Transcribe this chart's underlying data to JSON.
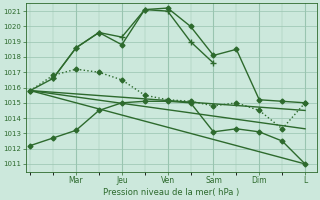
{
  "bg_color": "#cce8dc",
  "grid_color": "#99c4b0",
  "line_color": "#2d6a2d",
  "title": "Pression niveau de la mer( hPa )",
  "ylim": [
    1010.5,
    1021.5
  ],
  "yticks": [
    1011,
    1012,
    1013,
    1014,
    1015,
    1016,
    1017,
    1018,
    1019,
    1020,
    1021
  ],
  "xtick_positions": [
    2,
    4,
    6,
    8,
    10,
    12
  ],
  "xtick_labels": [
    "Mar",
    "Jeu",
    "Ven",
    "Sam",
    "Dim",
    "L"
  ],
  "vline_positions": [
    2,
    4,
    6,
    8,
    10,
    12
  ],
  "xlim": [
    -0.2,
    12.5
  ],
  "series": [
    {
      "x": [
        0,
        1,
        2,
        3,
        4,
        5,
        6,
        7,
        8,
        9,
        10,
        11,
        12
      ],
      "y": [
        1015.8,
        1016.6,
        1018.6,
        1019.6,
        1018.8,
        1021.1,
        1021.2,
        1020.0,
        1018.1,
        1018.5,
        1015.2,
        1015.1,
        1015.0
      ],
      "marker": "D",
      "markersize": 2.5,
      "linewidth": 1.0,
      "linestyle": "-"
    },
    {
      "x": [
        1,
        2,
        3,
        4,
        5,
        6,
        7,
        8
      ],
      "y": [
        1016.6,
        1018.6,
        1019.6,
        1019.3,
        1021.1,
        1021.0,
        1019.0,
        1017.6
      ],
      "marker": "+",
      "markersize": 5,
      "linewidth": 1.0,
      "linestyle": "-"
    },
    {
      "x": [
        0,
        12
      ],
      "y": [
        1015.8,
        1011.0
      ],
      "marker": null,
      "markersize": 0,
      "linewidth": 1.0,
      "linestyle": "-"
    },
    {
      "x": [
        0,
        12
      ],
      "y": [
        1015.8,
        1013.3
      ],
      "marker": null,
      "markersize": 0,
      "linewidth": 1.0,
      "linestyle": "-"
    },
    {
      "x": [
        0,
        12
      ],
      "y": [
        1015.8,
        1014.5
      ],
      "marker": null,
      "markersize": 0,
      "linewidth": 1.0,
      "linestyle": "-"
    },
    {
      "x": [
        0,
        1,
        2,
        3,
        4,
        5,
        6,
        7,
        8,
        9,
        10,
        11,
        12
      ],
      "y": [
        1012.2,
        1012.7,
        1013.2,
        1014.5,
        1015.0,
        1015.1,
        1015.1,
        1015.0,
        1013.1,
        1013.3,
        1013.1,
        1012.5,
        1011.0
      ],
      "marker": "D",
      "markersize": 2.5,
      "linewidth": 1.0,
      "linestyle": "-"
    },
    {
      "x": [
        0,
        1,
        2,
        3,
        4,
        5,
        6,
        7,
        8,
        9,
        10,
        11,
        12
      ],
      "y": [
        1015.8,
        1016.8,
        1017.2,
        1017.0,
        1016.5,
        1015.5,
        1015.2,
        1015.1,
        1014.8,
        1015.0,
        1014.5,
        1013.3,
        1015.0
      ],
      "marker": "D",
      "markersize": 2.5,
      "linewidth": 1.0,
      "linestyle": "dotted"
    }
  ],
  "figsize": [
    3.2,
    2.0
  ],
  "dpi": 100
}
